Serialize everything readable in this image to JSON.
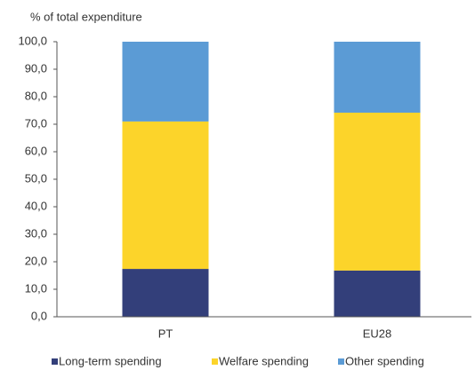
{
  "chart_data": {
    "type": "stacked_bar",
    "title": "% of total expenditure",
    "categories": [
      "PT",
      "EU28"
    ],
    "series": [
      {
        "name": "Long-term spending",
        "color": "#333f7a",
        "values": [
          17.4,
          16.8
        ]
      },
      {
        "name": "Welfare spending",
        "color": "#fcd42a",
        "values": [
          53.6,
          57.4
        ]
      },
      {
        "name": "Other spending",
        "color": "#5b9bd5",
        "values": [
          29.0,
          25.8
        ]
      }
    ],
    "ylim": [
      0,
      100
    ],
    "yticks": [
      {
        "value": 0,
        "label": "0,0"
      },
      {
        "value": 10,
        "label": "10,0"
      },
      {
        "value": 20,
        "label": "20,0"
      },
      {
        "value": 30,
        "label": "30,0"
      },
      {
        "value": 40,
        "label": "40,0"
      },
      {
        "value": 50,
        "label": "50,0"
      },
      {
        "value": 60,
        "label": "60,0"
      },
      {
        "value": 70,
        "label": "70,0"
      },
      {
        "value": 80,
        "label": "80,0"
      },
      {
        "value": 90,
        "label": "90,0"
      },
      {
        "value": 100,
        "label": "100,0"
      }
    ],
    "legend": "bottom"
  }
}
